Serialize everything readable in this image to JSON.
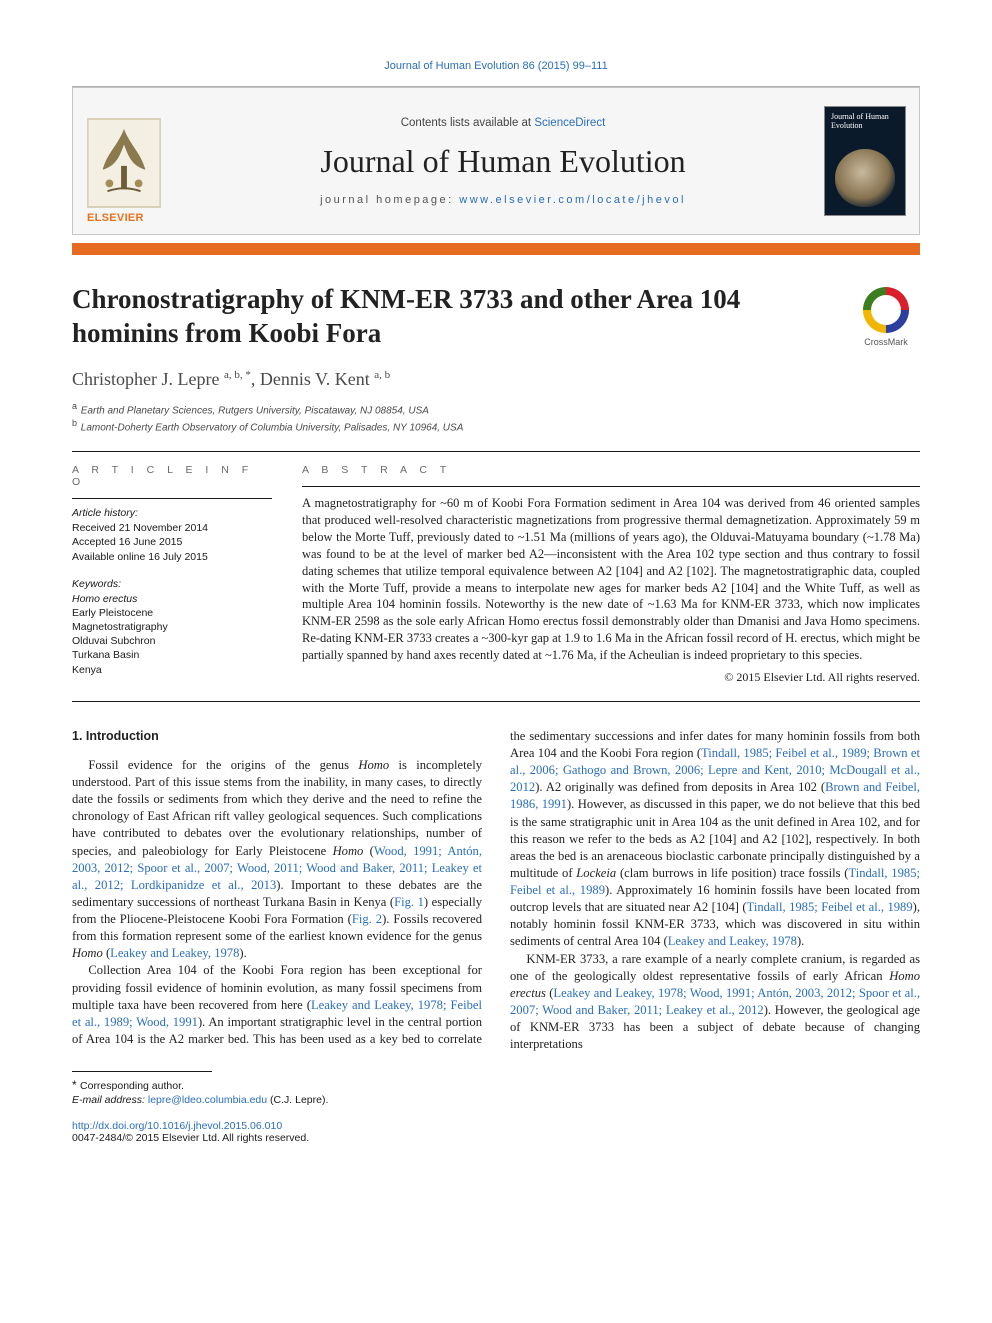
{
  "citation_line": "Journal of Human Evolution 86 (2015) 99–111",
  "header": {
    "contents_prefix": "Contents lists available at ",
    "contents_link": "ScienceDirect",
    "journal_name": "Journal of Human Evolution",
    "homepage_prefix": "journal homepage: ",
    "homepage_link": "www.elsevier.com/locate/jhevol",
    "publisher_label": "ELSEVIER",
    "cover_title": "Journal of Human Evolution"
  },
  "crossmark_label": "CrossMark",
  "article": {
    "title": "Chronostratigraphy of KNM-ER 3733 and other Area 104 hominins from Koobi Fora",
    "authors_html": "Christopher J. Lepre <sup>a, b, *</sup>, Dennis V. Kent <sup>a, b</sup>",
    "affiliations": [
      {
        "sup": "a",
        "text": "Earth and Planetary Sciences, Rutgers University, Piscataway, NJ 08854, USA"
      },
      {
        "sup": "b",
        "text": "Lamont-Doherty Earth Observatory of Columbia University, Palisades, NY 10964, USA"
      }
    ]
  },
  "info": {
    "label": "A R T I C L E   I N F O",
    "history_label": "Article history:",
    "history": [
      "Received 21 November 2014",
      "Accepted 16 June 2015",
      "Available online 16 July 2015"
    ],
    "keywords_label": "Keywords:",
    "keywords": [
      "Homo erectus",
      "Early Pleistocene",
      "Magnetostratigraphy",
      "Olduvai Subchron",
      "Turkana Basin",
      "Kenya"
    ]
  },
  "abstract": {
    "label": "A B S T R A C T",
    "text": "A magnetostratigraphy for ~60 m of Koobi Fora Formation sediment in Area 104 was derived from 46 oriented samples that produced well-resolved characteristic magnetizations from progressive thermal demagnetization. Approximately 59 m below the Morte Tuff, previously dated to ~1.51 Ma (millions of years ago), the Olduvai-Matuyama boundary (~1.78 Ma) was found to be at the level of marker bed A2—inconsistent with the Area 102 type section and thus contrary to fossil dating schemes that utilize temporal equivalence between A2 [104] and A2 [102]. The magnetostratigraphic data, coupled with the Morte Tuff, provide a means to interpolate new ages for marker beds A2 [104] and the White Tuff, as well as multiple Area 104 hominin fossils. Noteworthy is the new date of ~1.63 Ma for KNM-ER 3733, which now implicates KNM-ER 2598 as the sole early African Homo erectus fossil demonstrably older than Dmanisi and Java Homo specimens. Re-dating KNM-ER 3733 creates a ~300-kyr gap at 1.9 to 1.6 Ma in the African fossil record of H. erectus, which might be partially spanned by hand axes recently dated at ~1.76 Ma, if the Acheulian is indeed proprietary to this species.",
    "copyright": "© 2015 Elsevier Ltd. All rights reserved."
  },
  "body": {
    "section_heading": "1. Introduction",
    "p1_a": "Fossil evidence for the origins of the genus ",
    "p1_homo": "Homo",
    "p1_b": " is incompletely understood. Part of this issue stems from the inability, in many cases, to directly date the fossils or sediments from which they derive and the need to refine the chronology of East African rift valley geological sequences. Such complications have contributed to debates over the evolutionary relationships, number of species, and paleobiology for Early Pleistocene ",
    "p1_c": " (",
    "p1_cite1": "Wood, 1991; Antón, 2003, 2012; Spoor et al., 2007; Wood, 2011; Wood and Baker, 2011; Leakey et al., 2012; Lordkipanidze et al., 2013",
    "p1_d": "). Important to these debates are the sedimentary successions of northeast Turkana Basin in Kenya (",
    "p1_fig1": "Fig. 1",
    "p1_e": ") especially from the Pliocene-Pleistocene Koobi Fora Formation (",
    "p1_fig2": "Fig. 2",
    "p1_f": "). Fossils recovered from this formation represent some of the earliest known evidence for the genus ",
    "p1_g": " (",
    "p1_cite2": "Leakey and Leakey, 1978",
    "p1_h": ").",
    "p2_a": "Collection Area 104 of the Koobi Fora region has been exceptional for providing fossil evidence of hominin evolution, as many fossil specimens from multiple taxa have been recovered from here (",
    "p2_cite1": "Leakey and Leakey, 1978; Feibel et al., 1989; Wood, 1991",
    "p2_b": "). An important stratigraphic level in the central portion of Area 104 is the A2 marker bed. This has been used as a key bed to correlate the sedimentary successions and infer dates for many hominin fossils from both Area 104 and the Koobi Fora region (",
    "p2_cite2": "Tindall, 1985; Feibel et al., 1989; Brown et al., 2006; Gathogo and Brown, 2006; Lepre and Kent, 2010; McDougall et al., 2012",
    "p2_c": "). A2 originally was defined from deposits in Area 102 (",
    "p2_cite3": "Brown and Feibel, 1986, 1991",
    "p2_d": "). However, as discussed in this paper, we do not believe that this bed is the same stratigraphic unit in Area 104 as the unit defined in Area 102, and for this reason we refer to the beds as A2 [104] and A2 [102], respectively. In both areas the bed is an arenaceous bioclastic carbonate principally distinguished by a multitude of ",
    "p2_lockeia": "Lockeia",
    "p2_e": " (clam burrows in life position) trace fossils (",
    "p2_cite4": "Tindall, 1985; Feibel et al., 1989",
    "p2_f": "). Approximately 16 hominin fossils have been located from outcrop levels that are situated near A2 [104] (",
    "p2_cite5": "Tindall, 1985; Feibel et al., 1989",
    "p2_g": "), notably hominin fossil KNM-ER 3733, which was discovered in situ within sediments of central Area 104 (",
    "p2_cite6": "Leakey and Leakey, 1978",
    "p2_h": ").",
    "p3_a": "KNM-ER 3733, a rare example of a nearly complete cranium, is regarded as one of the geologically oldest representative fossils of early African ",
    "p3_he": "Homo erectus",
    "p3_b": " (",
    "p3_cite1": "Leakey and Leakey, 1978; Wood, 1991; Antón, 2003, 2012; Spoor et al., 2007; Wood and Baker, 2011; Leakey et al., 2012",
    "p3_c": "). However, the geological age of KNM-ER 3733 has been a subject of debate because of changing interpretations"
  },
  "footnote": {
    "corr": "Corresponding author.",
    "email_label": "E-mail address:",
    "email": "lepre@ldeo.columbia.edu",
    "email_person": "(C.J. Lepre)."
  },
  "doi": {
    "link": "http://dx.doi.org/10.1016/j.jhevol.2015.06.010",
    "issn_line": "0047-2484/© 2015 Elsevier Ltd. All rights reserved."
  },
  "colors": {
    "link": "#2a6ebb",
    "orange": "#e66a1f",
    "text": "#1a1a1a",
    "grey_label": "#6a6a6a",
    "box_border": "#c5c5c5",
    "box_bg": "#f6f6f6"
  }
}
